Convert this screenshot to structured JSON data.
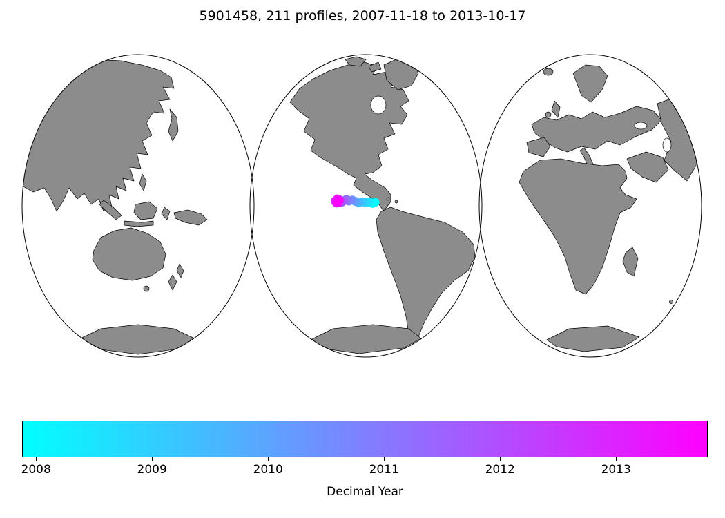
{
  "title": "5901458, 211 profiles, 2007-11-18 to 2013-10-17",
  "colorbar": {
    "label": "Decimal Year",
    "ticks": [
      "2008",
      "2009",
      "2010",
      "2011",
      "2012",
      "2013"
    ],
    "min": 2007.88,
    "max": 2013.79,
    "start_color": "#00ffff",
    "end_color": "#ff00ff"
  },
  "chart_data": {
    "type": "scatter",
    "title": "5901458, 211 profiles, 2007-11-18 to 2013-10-17",
    "colormap": "cool",
    "color_label": "Decimal Year",
    "color_range": [
      2007.88,
      2013.79
    ],
    "legend": "none",
    "map": {
      "projection": "interrupted three-lobe world map",
      "land_color": "#8c8c8c",
      "ocean_color": "#ffffff",
      "outline_color": "#000000"
    },
    "points": [
      {
        "year": 2007.9,
        "lon": -83.0,
        "lat": 2.1
      },
      {
        "year": 2008.1,
        "lon": -85.0,
        "lat": 1.5
      },
      {
        "year": 2008.4,
        "lon": -87.5,
        "lat": 2.3
      },
      {
        "year": 2008.8,
        "lon": -90.0,
        "lat": 1.9
      },
      {
        "year": 2009.2,
        "lon": -93.0,
        "lat": 2.4
      },
      {
        "year": 2009.6,
        "lon": -95.5,
        "lat": 1.8
      },
      {
        "year": 2010.0,
        "lon": -98.0,
        "lat": 2.6
      },
      {
        "year": 2010.4,
        "lon": -100.5,
        "lat": 3.4
      },
      {
        "year": 2010.8,
        "lon": -103.0,
        "lat": 2.9
      },
      {
        "year": 2011.2,
        "lon": -105.0,
        "lat": 3.8
      },
      {
        "year": 2011.5,
        "lon": -107.0,
        "lat": 3.0
      },
      {
        "year": 2011.8,
        "lon": -108.5,
        "lat": 2.2
      },
      {
        "year": 2012.1,
        "lon": -110.0,
        "lat": 3.5
      },
      {
        "year": 2012.4,
        "lon": -111.5,
        "lat": 2.7
      },
      {
        "year": 2012.7,
        "lon": -112.5,
        "lat": 1.7
      },
      {
        "year": 2012.9,
        "lon": -112.0,
        "lat": 3.6
      },
      {
        "year": 2013.0,
        "lon": -113.5,
        "lat": 2.9
      },
      {
        "year": 2013.1,
        "lon": -113.0,
        "lat": 2.2
      },
      {
        "year": 2013.3,
        "lon": -112.0,
        "lat": 4.0
      },
      {
        "year": 2013.5,
        "lon": -111.5,
        "lat": 1.8
      },
      {
        "year": 2013.6,
        "lon": -110.5,
        "lat": 3.2
      },
      {
        "year": 2013.8,
        "lon": -111.0,
        "lat": 2.4
      }
    ]
  }
}
